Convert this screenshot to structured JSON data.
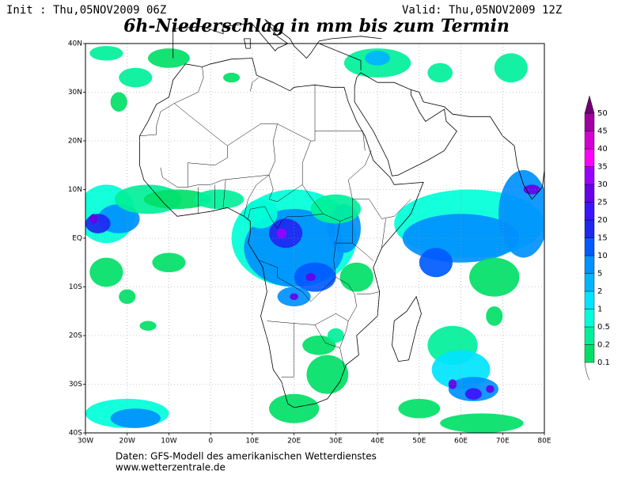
{
  "header": {
    "init": "Init : Thu,05NOV2009 06Z",
    "valid": "Valid: Thu,05NOV2009 12Z",
    "title": "6h-Niederschlag in mm bis zum Termin"
  },
  "map": {
    "lon_labels": [
      "30W",
      "20W",
      "10W",
      "0",
      "10E",
      "20E",
      "30E",
      "40E",
      "50E",
      "60E",
      "70E",
      "80E"
    ],
    "lat_labels": [
      "40N",
      "30N",
      "20N",
      "10N",
      "EQ",
      "10S",
      "20S",
      "30S",
      "40S"
    ]
  },
  "legend": {
    "levels": [
      {
        "label": "0.1",
        "color": "#00e066"
      },
      {
        "label": "0.2",
        "color": "#00f09a"
      },
      {
        "label": "0.5",
        "color": "#00ffd8"
      },
      {
        "label": "1",
        "color": "#00e4ff"
      },
      {
        "label": "2",
        "color": "#00b4ff"
      },
      {
        "label": "5",
        "color": "#0090ff"
      },
      {
        "label": "10",
        "color": "#005aff"
      },
      {
        "label": "15",
        "color": "#1e28f0"
      },
      {
        "label": "20",
        "color": "#3c14ff"
      },
      {
        "label": "25",
        "color": "#6a00e8"
      },
      {
        "label": "30",
        "color": "#9a00ff"
      },
      {
        "label": "35",
        "color": "#ff00ff"
      },
      {
        "label": "40",
        "color": "#d200d2"
      },
      {
        "label": "45",
        "color": "#a000a0"
      },
      {
        "label": "50",
        "color": "#700070"
      }
    ]
  },
  "footer": {
    "source": "Daten: GFS-Modell des amerikanischen Wetterdienstes",
    "url": "www.wetterzentrale.de"
  }
}
